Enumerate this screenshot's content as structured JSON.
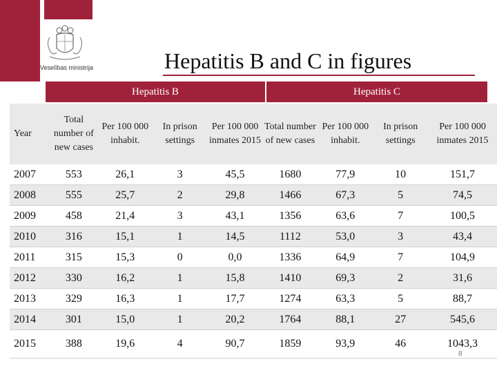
{
  "header": {
    "ministry": "Veselības ministrija",
    "title": "Hepatitis B and C in figures"
  },
  "groups": {
    "hep_b": "Hepatitis B",
    "hep_c": "Hepatitis C"
  },
  "columns": [
    "Year",
    "Total number of new cases",
    "Per 100 000 inhabit.",
    "In prison settings",
    "Per 100 000 inmates 2015",
    "Total number of new cases",
    "Per 100 000 inhabit.",
    "In prison settings",
    "Per 100 000 inmates 2015"
  ],
  "rows": [
    [
      "2007",
      "553",
      "26,1",
      "3",
      "45,5",
      "1680",
      "77,9",
      "10",
      "151,7"
    ],
    [
      "2008",
      "555",
      "25,7",
      "2",
      "29,8",
      "1466",
      "67,3",
      "5",
      "74,5"
    ],
    [
      "2009",
      "458",
      "21,4",
      "3",
      "43,1",
      "1356",
      "63,6",
      "7",
      "100,5"
    ],
    [
      "2010",
      "316",
      "15,1",
      "1",
      "14,5",
      "1112",
      "53,0",
      "3",
      "43,4"
    ],
    [
      "2011",
      "315",
      "15,3",
      "0",
      "0,0",
      "1336",
      "64,9",
      "7",
      "104,9"
    ],
    [
      "2012",
      "330",
      "16,2",
      "1",
      "15,8",
      "1410",
      "69,3",
      "2",
      "31,6"
    ],
    [
      "2013",
      "329",
      "16,3",
      "1",
      "17,7",
      "1274",
      "63,3",
      "5",
      "88,7"
    ],
    [
      "2014",
      "301",
      "15,0",
      "1",
      "20,2",
      "1764",
      "88,1",
      "27",
      "545,6"
    ],
    [
      "2015",
      "388",
      "19,6",
      "4",
      "90,7",
      "1859",
      "93,9",
      "46",
      "1043,3"
    ]
  ],
  "footer": {
    "page_number": "8"
  },
  "colors": {
    "accent": "#a0223a",
    "row_shade": "#e9e9e9"
  }
}
